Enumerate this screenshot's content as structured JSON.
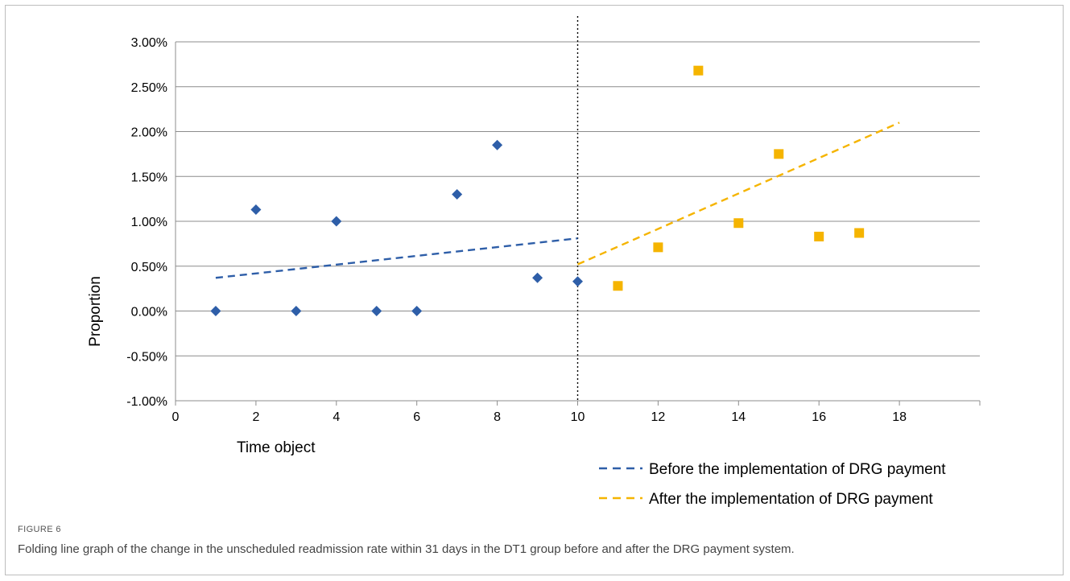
{
  "figure": {
    "label": "FIGURE 6",
    "caption": "Folding line graph of the change in the unscheduled readmission rate within 31 days in the DT1 group before and after the DRG payment system."
  },
  "chart_data": {
    "type": "scatter",
    "xlabel": "Time object",
    "ylabel": "Proportion",
    "xlim": [
      0,
      20
    ],
    "ylim": [
      -1.0,
      3.0
    ],
    "x_ticks": [
      "0",
      "2",
      "4",
      "6",
      "8",
      "10",
      "12",
      "14",
      "16",
      "18"
    ],
    "y_ticks": [
      "-1.00%",
      "-0.50%",
      "0.00%",
      "0.50%",
      "1.00%",
      "1.50%",
      "2.00%",
      "2.50%",
      "3.00%"
    ],
    "grid": "horizontal",
    "vline_x": 10,
    "series": [
      {
        "marker": "diamond",
        "color": "#2e5ea8",
        "x": [
          1,
          2,
          3,
          4,
          5,
          6,
          7,
          8,
          9,
          10
        ],
        "y": [
          0.0,
          1.13,
          0.0,
          1.0,
          0.0,
          0.0,
          1.3,
          1.85,
          0.37,
          0.33
        ]
      },
      {
        "marker": "square",
        "color": "#f5b400",
        "x": [
          11,
          12,
          13,
          14,
          15,
          16,
          17
        ],
        "y": [
          0.28,
          0.71,
          2.68,
          0.98,
          1.75,
          0.83,
          0.87
        ]
      }
    ],
    "trendlines": [
      {
        "name": "Before the implementation of DRG payment",
        "color": "#2e5ea8",
        "x": [
          1,
          10
        ],
        "y": [
          0.37,
          0.81
        ]
      },
      {
        "name": "After the implementation of DRG payment",
        "color": "#f5b400",
        "x": [
          10,
          18
        ],
        "y": [
          0.52,
          2.1
        ]
      }
    ],
    "legend_position": "bottom-right"
  }
}
